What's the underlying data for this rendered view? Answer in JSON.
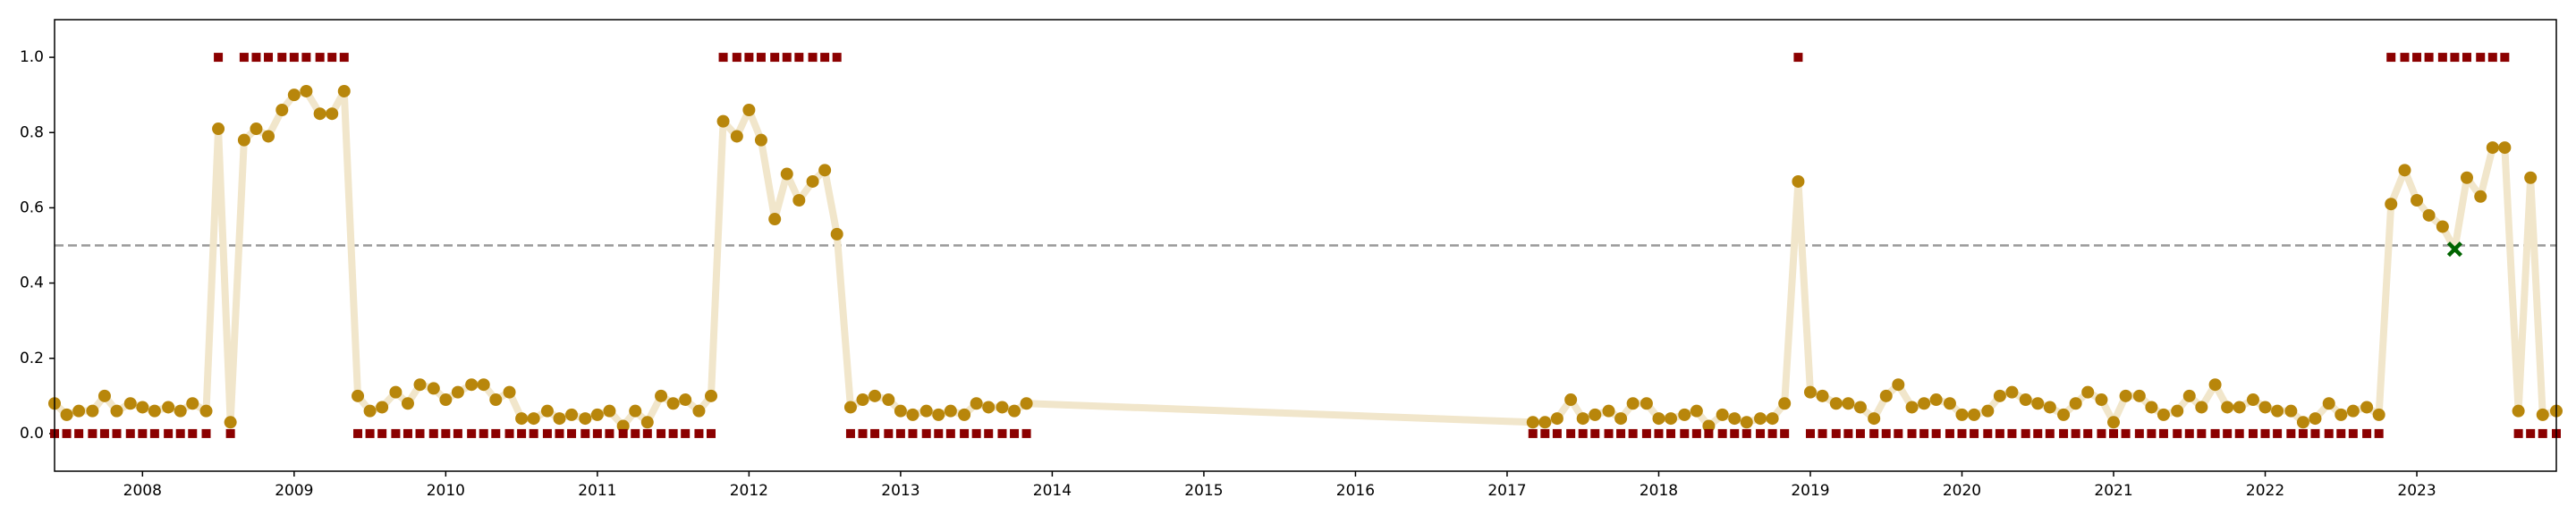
{
  "chart_data": {
    "type": "line",
    "x": [
      2007.42,
      2007.5,
      2007.58,
      2007.67,
      2007.75,
      2007.83,
      2007.92,
      2008,
      2008.08,
      2008.17,
      2008.25,
      2008.33,
      2008.42,
      2008.5,
      2008.58,
      2008.67,
      2008.75,
      2008.83,
      2008.92,
      2009,
      2009.08,
      2009.17,
      2009.25,
      2009.33,
      2009.42,
      2009.5,
      2009.58,
      2009.67,
      2009.75,
      2009.83,
      2009.92,
      2010,
      2010.08,
      2010.17,
      2010.25,
      2010.33,
      2010.42,
      2010.5,
      2010.58,
      2010.67,
      2010.75,
      2010.83,
      2010.92,
      2011,
      2011.08,
      2011.17,
      2011.25,
      2011.33,
      2011.42,
      2011.5,
      2011.58,
      2011.67,
      2011.75,
      2011.83,
      2011.92,
      2012,
      2012.08,
      2012.17,
      2012.25,
      2012.33,
      2012.42,
      2012.5,
      2012.58,
      2012.67,
      2012.75,
      2012.83,
      2012.92,
      2013,
      2013.08,
      2013.17,
      2013.25,
      2013.33,
      2013.42,
      2013.5,
      2013.58,
      2013.67,
      2013.75,
      2013.83,
      2017.17,
      2017.25,
      2017.33,
      2017.42,
      2017.5,
      2017.58,
      2017.67,
      2017.75,
      2017.83,
      2017.92,
      2018,
      2018.08,
      2018.17,
      2018.25,
      2018.33,
      2018.42,
      2018.5,
      2018.58,
      2018.67,
      2018.75,
      2018.83,
      2018.92,
      2019,
      2019.08,
      2019.17,
      2019.25,
      2019.33,
      2019.42,
      2019.5,
      2019.58,
      2019.67,
      2019.75,
      2019.83,
      2019.92,
      2020,
      2020.08,
      2020.17,
      2020.25,
      2020.33,
      2020.42,
      2020.5,
      2020.58,
      2020.67,
      2020.75,
      2020.83,
      2020.92,
      2021,
      2021.08,
      2021.17,
      2021.25,
      2021.33,
      2021.42,
      2021.5,
      2021.58,
      2021.67,
      2021.75,
      2021.83,
      2021.92,
      2022,
      2022.08,
      2022.17,
      2022.25,
      2022.33,
      2022.42,
      2022.5,
      2022.58,
      2022.67,
      2022.75,
      2022.83,
      2022.92,
      2023,
      2023.08,
      2023.17,
      2023.25,
      2023.33,
      2023.42,
      2023.5,
      2023.58,
      2023.67,
      2023.75,
      2023.83,
      2023.92
    ],
    "series": [
      {
        "color": "#b8860b",
        "line_color": "#f1e6cb",
        "values": [
          0.08,
          0.05,
          0.06,
          0.06,
          0.1,
          0.06,
          0.08,
          0.07,
          0.06,
          0.07,
          0.06,
          0.08,
          0.06,
          0.81,
          0.03,
          0.78,
          0.81,
          0.79,
          0.86,
          0.9,
          0.91,
          0.85,
          0.85,
          0.91,
          0.1,
          0.06,
          0.07,
          0.11,
          0.08,
          0.13,
          0.12,
          0.09,
          0.11,
          0.13,
          0.13,
          0.09,
          0.11,
          0.04,
          0.04,
          0.06,
          0.04,
          0.05,
          0.04,
          0.05,
          0.06,
          0.02,
          0.06,
          0.03,
          0.1,
          0.08,
          0.09,
          0.06,
          0.1,
          0.83,
          0.79,
          0.86,
          0.78,
          0.57,
          0.69,
          0.62,
          0.67,
          0.7,
          0.53,
          0.07,
          0.09,
          0.1,
          0.09,
          0.06,
          0.05,
          0.06,
          0.05,
          0.06,
          0.05,
          0.08,
          0.07,
          0.07,
          0.06,
          0.08,
          0.03,
          0.03,
          0.04,
          0.09,
          0.04,
          0.05,
          0.06,
          0.04,
          0.08,
          0.08,
          0.04,
          0.04,
          0.05,
          0.06,
          0.02,
          0.05,
          0.04,
          0.03,
          0.04,
          0.04,
          0.08,
          0.67,
          0.11,
          0.1,
          0.08,
          0.08,
          0.07,
          0.04,
          0.1,
          0.13,
          0.07,
          0.08,
          0.09,
          0.08,
          0.05,
          0.05,
          0.06,
          0.1,
          0.11,
          0.09,
          0.08,
          0.07,
          0.05,
          0.08,
          0.11,
          0.09,
          0.03,
          0.1,
          0.1,
          0.07,
          0.05,
          0.06,
          0.1,
          0.07,
          0.13,
          0.07,
          0.07,
          0.09,
          0.07,
          0.06,
          0.06,
          0.03,
          0.04,
          0.08,
          0.05,
          0.06,
          0.07,
          0.05,
          0.61,
          0.7,
          0.62,
          0.58,
          0.55,
          0.49,
          0.68,
          0.63,
          0.76,
          0.76,
          0.06,
          0.68,
          0.05,
          0.06
        ]
      },
      {
        "color": "#8b0000",
        "marker": "square",
        "values": [
          0,
          0,
          0,
          0,
          0,
          0,
          0,
          0,
          0,
          0,
          0,
          0,
          0,
          1,
          0,
          1,
          1,
          1,
          1,
          1,
          1,
          1,
          1,
          1,
          0,
          0,
          0,
          0,
          0,
          0,
          0,
          0,
          0,
          0,
          0,
          0,
          0,
          0,
          0,
          0,
          0,
          0,
          0,
          0,
          0,
          0,
          0,
          0,
          0,
          0,
          0,
          0,
          0,
          1,
          1,
          1,
          1,
          1,
          1,
          1,
          1,
          1,
          1,
          0,
          0,
          0,
          0,
          0,
          0,
          0,
          0,
          0,
          0,
          0,
          0,
          0,
          0,
          0,
          0,
          0,
          0,
          0,
          0,
          0,
          0,
          0,
          0,
          0,
          0,
          0,
          0,
          0,
          0,
          0,
          0,
          0,
          0,
          0,
          0,
          1,
          0,
          0,
          0,
          0,
          0,
          0,
          0,
          0,
          0,
          0,
          0,
          0,
          0,
          0,
          0,
          0,
          0,
          0,
          0,
          0,
          0,
          0,
          0,
          0,
          0,
          0,
          0,
          0,
          0,
          0,
          0,
          0,
          0,
          0,
          0,
          0,
          0,
          0,
          0,
          0,
          0,
          0,
          0,
          0,
          0,
          0,
          1,
          1,
          1,
          1,
          1,
          1,
          1,
          1,
          1,
          1,
          0,
          0,
          0,
          0
        ]
      }
    ],
    "highlight": {
      "x": 2023.25,
      "value": 0.49,
      "color": "#006400",
      "marker": "x"
    },
    "hline": {
      "value": 0.5,
      "color": "#999999",
      "style": "dashed"
    },
    "xlim": [
      2007.42,
      2023.92
    ],
    "ylim": [
      -0.1,
      1.1
    ],
    "xticks": [
      2008,
      2009,
      2010,
      2011,
      2012,
      2013,
      2014,
      2015,
      2016,
      2017,
      2018,
      2019,
      2020,
      2021,
      2022,
      2023
    ],
    "yticks": [
      {
        "value": 0,
        "label": "0.0"
      },
      0.2,
      0.4,
      0.6,
      0.8,
      {
        "value": 1,
        "label": "1.0"
      }
    ]
  }
}
